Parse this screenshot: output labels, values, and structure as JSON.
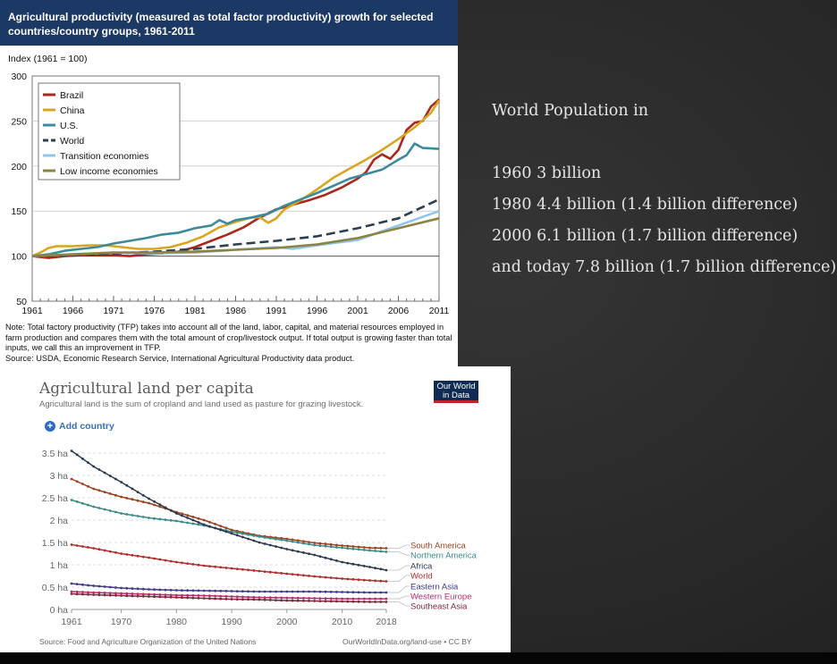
{
  "panel1": {
    "title": "Agricultural productivity (measured as total factor productivity) growth for selected countries/country groups, 1961-2011",
    "ylabel": "Index (1961 = 100)",
    "note": "Note: Total factory productivity (TFP) takes into account all of the land, labor, capital, and material resources employed in farm production and compares them with the total amount of crop/livestock output. If total output is growing faster than total inputs, we call this an improvement in TFP.",
    "source": "Source: USDA, Economic Research Service, International Agricultural Productivity data product."
  },
  "panel2": {
    "title": "Agricultural land per capita",
    "subtitle": "Agricultural land is the sum of cropland and land used as pasture for grazing livestock.",
    "add_country": "Add country",
    "logo_line1": "Our World",
    "logo_line2": "in Data",
    "source": "Source: Food and Agriculture Organization of the United Nations",
    "url": "OurWorldInData.org/land-use • CC BY"
  },
  "population": {
    "heading": "World Population in",
    "lines": [
      "1960 3 billion",
      "1980 4.4 billion (1.4 billion difference)",
      "2000 6.1 billion (1.7 billion difference)",
      "and today 7.8 billion (1.7 billion difference)"
    ]
  },
  "chart_data": [
    {
      "type": "line",
      "title": "Agricultural productivity (measured as total factor productivity) growth for selected countries/country groups, 1961-2011",
      "ylabel": "Index (1961 = 100)",
      "xlabel": "",
      "xlim": [
        1961,
        2011
      ],
      "ylim": [
        50,
        300
      ],
      "xticks": [
        1961,
        1966,
        1971,
        1976,
        1981,
        1986,
        1991,
        1996,
        2001,
        2006,
        2011
      ],
      "yticks": [
        50,
        100,
        150,
        200,
        250,
        300
      ],
      "grid": true,
      "legend": "top-left",
      "series": [
        {
          "name": "Brazil",
          "color": "#a8291d",
          "dash": false,
          "points": [
            [
              1961,
              100
            ],
            [
              1963,
              98
            ],
            [
              1965,
              100
            ],
            [
              1967,
              101
            ],
            [
              1969,
              101
            ],
            [
              1971,
              101
            ],
            [
              1973,
              100
            ],
            [
              1975,
              102
            ],
            [
              1977,
              103
            ],
            [
              1979,
              105
            ],
            [
              1981,
              110
            ],
            [
              1983,
              117
            ],
            [
              1985,
              124
            ],
            [
              1987,
              132
            ],
            [
              1989,
              143
            ],
            [
              1991,
              152
            ],
            [
              1993,
              157
            ],
            [
              1995,
              162
            ],
            [
              1997,
              168
            ],
            [
              1999,
              176
            ],
            [
              2001,
              186
            ],
            [
              2002,
              193
            ],
            [
              2003,
              207
            ],
            [
              2004,
              213
            ],
            [
              2005,
              208
            ],
            [
              2006,
              218
            ],
            [
              2007,
              240
            ],
            [
              2008,
              248
            ],
            [
              2009,
              250
            ],
            [
              2010,
              266
            ],
            [
              2011,
              274
            ]
          ]
        },
        {
          "name": "China",
          "color": "#d9a521",
          "dash": false,
          "points": [
            [
              1961,
              100
            ],
            [
              1962,
              104
            ],
            [
              1963,
              109
            ],
            [
              1964,
              111
            ],
            [
              1966,
              111
            ],
            [
              1968,
              112
            ],
            [
              1970,
              112
            ],
            [
              1972,
              110
            ],
            [
              1974,
              108
            ],
            [
              1976,
              108
            ],
            [
              1978,
              110
            ],
            [
              1980,
              115
            ],
            [
              1982,
              122
            ],
            [
              1984,
              132
            ],
            [
              1986,
              138
            ],
            [
              1988,
              143
            ],
            [
              1989,
              143
            ],
            [
              1990,
              137
            ],
            [
              1991,
              142
            ],
            [
              1992,
              152
            ],
            [
              1994,
              162
            ],
            [
              1996,
              174
            ],
            [
              1998,
              187
            ],
            [
              2000,
              197
            ],
            [
              2002,
              207
            ],
            [
              2004,
              218
            ],
            [
              2006,
              230
            ],
            [
              2008,
              243
            ],
            [
              2010,
              259
            ],
            [
              2011,
              273
            ]
          ]
        },
        {
          "name": "U.S.",
          "color": "#3d8a99",
          "dash": false,
          "points": [
            [
              1961,
              100
            ],
            [
              1963,
              102
            ],
            [
              1965,
              106
            ],
            [
              1967,
              108
            ],
            [
              1969,
              110
            ],
            [
              1971,
              114
            ],
            [
              1973,
              117
            ],
            [
              1975,
              120
            ],
            [
              1977,
              124
            ],
            [
              1979,
              126
            ],
            [
              1981,
              131
            ],
            [
              1983,
              134
            ],
            [
              1984,
              140
            ],
            [
              1985,
              136
            ],
            [
              1986,
              140
            ],
            [
              1988,
              143
            ],
            [
              1990,
              147
            ],
            [
              1992,
              156
            ],
            [
              1994,
              163
            ],
            [
              1996,
              170
            ],
            [
              1998,
              178
            ],
            [
              2000,
              186
            ],
            [
              2002,
              191
            ],
            [
              2004,
              196
            ],
            [
              2006,
              207
            ],
            [
              2007,
              212
            ],
            [
              2008,
              225
            ],
            [
              2009,
              220
            ],
            [
              2011,
              219
            ]
          ]
        },
        {
          "name": "World",
          "color": "#2c3e50",
          "dash": true,
          "points": [
            [
              1961,
              100
            ],
            [
              1966,
              101
            ],
            [
              1971,
              103
            ],
            [
              1976,
              105
            ],
            [
              1981,
              108
            ],
            [
              1986,
              113
            ],
            [
              1991,
              117
            ],
            [
              1996,
              122
            ],
            [
              2001,
              131
            ],
            [
              2006,
              142
            ],
            [
              2011,
              163
            ]
          ]
        },
        {
          "name": "Transition economies",
          "color": "#8fc5ea",
          "dash": false,
          "points": [
            [
              1961,
              100
            ],
            [
              1966,
              102
            ],
            [
              1971,
              104
            ],
            [
              1976,
              103
            ],
            [
              1981,
              104
            ],
            [
              1986,
              107
            ],
            [
              1991,
              110
            ],
            [
              1993,
              108
            ],
            [
              1996,
              112
            ],
            [
              2001,
              118
            ],
            [
              2006,
              134
            ],
            [
              2011,
              150
            ]
          ]
        },
        {
          "name": "Low income economies",
          "color": "#8a8440",
          "dash": false,
          "points": [
            [
              1961,
              100
            ],
            [
              1966,
              102
            ],
            [
              1971,
              104
            ],
            [
              1976,
              104
            ],
            [
              1981,
              105
            ],
            [
              1986,
              107
            ],
            [
              1991,
              109
            ],
            [
              1996,
              113
            ],
            [
              2001,
              120
            ],
            [
              2006,
              131
            ],
            [
              2011,
              142
            ]
          ]
        }
      ]
    },
    {
      "type": "line",
      "title": "Agricultural land per capita",
      "subtitle": "Agricultural land is the sum of cropland and land used as pasture for grazing livestock.",
      "xlim": [
        1961,
        2018
      ],
      "ylim": [
        0,
        3.5
      ],
      "xticks": [
        1961,
        1970,
        1980,
        1990,
        2000,
        2010,
        2018
      ],
      "yticks": [
        "0 ha",
        "0.5 ha",
        "1 ha",
        "1.5 ha",
        "2 ha",
        "2.5 ha",
        "3 ha",
        "3.5 ha"
      ],
      "ytick_values": [
        0,
        0.5,
        1,
        1.5,
        2,
        2.5,
        3,
        3.5
      ],
      "grid": true,
      "legend": "right (line labels)",
      "series": [
        {
          "name": "South America",
          "color": "#9c4220",
          "points": [
            [
              1961,
              2.92
            ],
            [
              1965,
              2.7
            ],
            [
              1970,
              2.52
            ],
            [
              1975,
              2.38
            ],
            [
              1980,
              2.18
            ],
            [
              1985,
              2.0
            ],
            [
              1990,
              1.78
            ],
            [
              1995,
              1.65
            ],
            [
              2000,
              1.58
            ],
            [
              2005,
              1.49
            ],
            [
              2010,
              1.43
            ],
            [
              2015,
              1.38
            ],
            [
              2018,
              1.37
            ]
          ]
        },
        {
          "name": "Northern America",
          "color": "#3c8a88",
          "points": [
            [
              1961,
              2.45
            ],
            [
              1965,
              2.3
            ],
            [
              1970,
              2.15
            ],
            [
              1975,
              2.05
            ],
            [
              1980,
              1.98
            ],
            [
              1985,
              1.88
            ],
            [
              1990,
              1.74
            ],
            [
              1995,
              1.63
            ],
            [
              2000,
              1.54
            ],
            [
              2005,
              1.44
            ],
            [
              2010,
              1.38
            ],
            [
              2015,
              1.32
            ],
            [
              2018,
              1.29
            ]
          ]
        },
        {
          "name": "Africa",
          "color": "#2d3a4e",
          "points": [
            [
              1961,
              3.55
            ],
            [
              1965,
              3.2
            ],
            [
              1970,
              2.85
            ],
            [
              1975,
              2.48
            ],
            [
              1980,
              2.15
            ],
            [
              1985,
              1.9
            ],
            [
              1990,
              1.7
            ],
            [
              1995,
              1.5
            ],
            [
              2000,
              1.35
            ],
            [
              2005,
              1.22
            ],
            [
              2010,
              1.06
            ],
            [
              2015,
              0.95
            ],
            [
              2018,
              0.88
            ]
          ]
        },
        {
          "name": "World",
          "color": "#b22d2d",
          "points": [
            [
              1961,
              1.45
            ],
            [
              1965,
              1.37
            ],
            [
              1970,
              1.25
            ],
            [
              1975,
              1.16
            ],
            [
              1980,
              1.06
            ],
            [
              1985,
              0.98
            ],
            [
              1990,
              0.92
            ],
            [
              1995,
              0.86
            ],
            [
              2000,
              0.8
            ],
            [
              2005,
              0.74
            ],
            [
              2010,
              0.69
            ],
            [
              2015,
              0.65
            ],
            [
              2018,
              0.63
            ]
          ]
        },
        {
          "name": "Eastern Asia",
          "color": "#3f3c8a",
          "points": [
            [
              1961,
              0.58
            ],
            [
              1965,
              0.53
            ],
            [
              1970,
              0.48
            ],
            [
              1975,
              0.45
            ],
            [
              1980,
              0.43
            ],
            [
              1985,
              0.42
            ],
            [
              1990,
              0.41
            ],
            [
              1995,
              0.4
            ],
            [
              2000,
              0.4
            ],
            [
              2005,
              0.4
            ],
            [
              2010,
              0.39
            ],
            [
              2015,
              0.38
            ],
            [
              2018,
              0.38
            ]
          ]
        },
        {
          "name": "Western Europe",
          "color": "#b72e6c",
          "points": [
            [
              1961,
              0.4
            ],
            [
              1965,
              0.38
            ],
            [
              1970,
              0.36
            ],
            [
              1975,
              0.34
            ],
            [
              1980,
              0.32
            ],
            [
              1985,
              0.31
            ],
            [
              1990,
              0.29
            ],
            [
              1995,
              0.27
            ],
            [
              2000,
              0.26
            ],
            [
              2005,
              0.25
            ],
            [
              2010,
              0.24
            ],
            [
              2015,
              0.24
            ],
            [
              2018,
              0.24
            ]
          ]
        },
        {
          "name": "Southeast Asia",
          "color": "#7a2a3a",
          "points": [
            [
              1961,
              0.35
            ],
            [
              1965,
              0.33
            ],
            [
              1970,
              0.31
            ],
            [
              1975,
              0.29
            ],
            [
              1980,
              0.27
            ],
            [
              1985,
              0.25
            ],
            [
              1990,
              0.23
            ],
            [
              1995,
              0.22
            ],
            [
              2000,
              0.2
            ],
            [
              2005,
              0.19
            ],
            [
              2010,
              0.18
            ],
            [
              2015,
              0.17
            ],
            [
              2018,
              0.17
            ]
          ]
        }
      ]
    }
  ]
}
